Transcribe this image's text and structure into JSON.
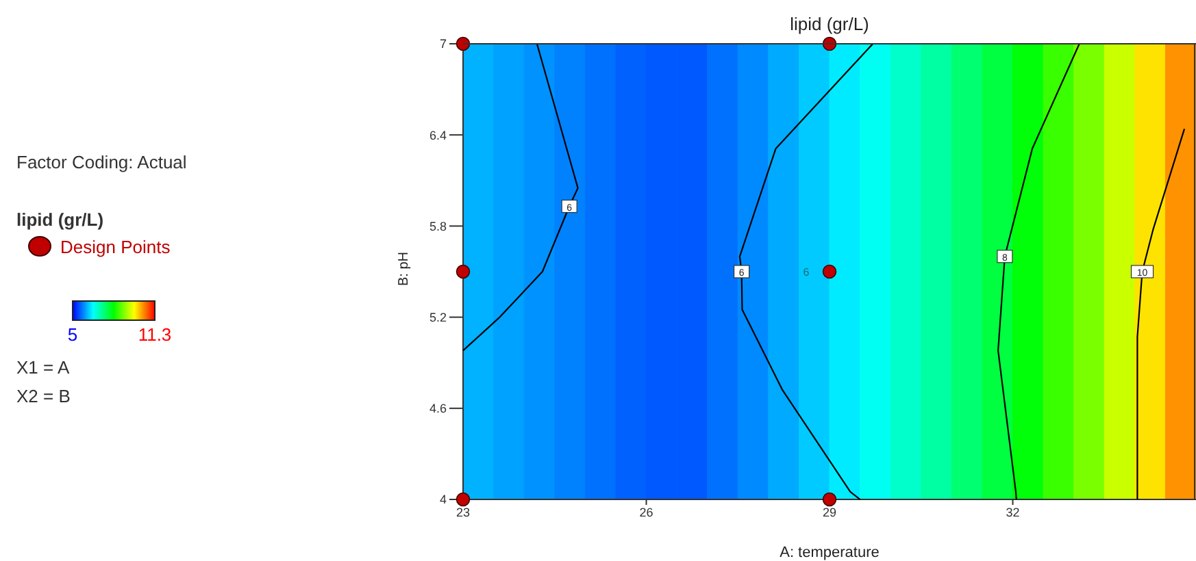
{
  "chart_data": {
    "type": "line",
    "title": "lipid (gr/L)",
    "xlabel": "A: temperature",
    "ylabel": "B: pH",
    "legend_title": "lipid (gr/L)",
    "legend": "left",
    "xlim": [
      23,
      35
    ],
    "xticks": [
      23,
      26,
      29,
      32
    ],
    "ylim": [
      4,
      7
    ],
    "yticks": [
      4,
      4.6,
      5.2,
      5.8,
      6.4,
      7
    ],
    "clim": [
      5,
      11.3
    ],
    "cticks": [
      5,
      11.3
    ],
    "bands": [
      {
        "axis": "x",
        "from": 23,
        "to": 23.5,
        "color": "#00b2ff"
      },
      {
        "axis": "x",
        "from": 23.5,
        "to": 24,
        "color": "#00a2ff"
      },
      {
        "axis": "x",
        "from": 24,
        "to": 24.5,
        "color": "#0092ff"
      },
      {
        "axis": "x",
        "from": 24.5,
        "to": 25,
        "color": "#0082ff"
      },
      {
        "axis": "x",
        "from": 25,
        "to": 25.5,
        "color": "#0071ff"
      },
      {
        "axis": "x",
        "from": 25.5,
        "to": 26,
        "color": "#0061ff"
      },
      {
        "axis": "x",
        "from": 26,
        "to": 26.5,
        "color": "#0059ff"
      },
      {
        "axis": "x",
        "from": 26.5,
        "to": 27,
        "color": "#0059ff"
      },
      {
        "axis": "x",
        "from": 27,
        "to": 27.5,
        "color": "#0071ff"
      },
      {
        "axis": "x",
        "from": 27.5,
        "to": 28,
        "color": "#008aff"
      },
      {
        "axis": "x",
        "from": 28,
        "to": 28.5,
        "color": "#00aaff"
      },
      {
        "axis": "x",
        "from": 28.5,
        "to": 29,
        "color": "#00caff"
      },
      {
        "axis": "x",
        "from": 29,
        "to": 29.5,
        "color": "#00ebff"
      },
      {
        "axis": "x",
        "from": 29.5,
        "to": 30,
        "color": "#00fff3"
      },
      {
        "axis": "x",
        "from": 30,
        "to": 30.5,
        "color": "#00ffca"
      },
      {
        "axis": "x",
        "from": 30.5,
        "to": 31,
        "color": "#00ffa2"
      },
      {
        "axis": "x",
        "from": 31,
        "to": 31.5,
        "color": "#00ff71"
      },
      {
        "axis": "x",
        "from": 31.5,
        "to": 32,
        "color": "#00ff41"
      },
      {
        "axis": "x",
        "from": 32,
        "to": 32.5,
        "color": "#00ff08"
      },
      {
        "axis": "x",
        "from": 32.5,
        "to": 33,
        "color": "#39ff00"
      },
      {
        "axis": "x",
        "from": 33,
        "to": 33.5,
        "color": "#79ff00"
      },
      {
        "axis": "x",
        "from": 33.5,
        "to": 34,
        "color": "#caff00"
      },
      {
        "axis": "x",
        "from": 34,
        "to": 34.5,
        "color": "#ffe300"
      },
      {
        "axis": "x",
        "from": 34.5,
        "to": 35,
        "color": "#ff9200"
      }
    ],
    "series": [
      {
        "type": "line",
        "color": "#000000",
        "x": [
          24.21,
          24.88,
          24.74,
          24.3,
          23.6,
          23
        ],
        "values": [
          7,
          6.05,
          5.93,
          5.5,
          5.2,
          4.98
        ]
      },
      {
        "type": "line",
        "color": "#000000",
        "x": [
          29.71,
          28.12,
          27.53,
          27.56,
          27.57,
          28.23,
          29.34,
          29.5
        ],
        "values": [
          7,
          6.31,
          5.6,
          5.5,
          5.25,
          4.72,
          4.05,
          4
        ]
      },
      {
        "type": "line",
        "color": "#000000",
        "x": [
          33.09,
          32.32,
          31.87,
          31.76,
          32.05,
          32.06
        ],
        "values": [
          7,
          6.31,
          5.6,
          4.98,
          4.05,
          4
        ]
      },
      {
        "type": "line",
        "color": "#000000",
        "x": [
          34.81,
          34.3,
          34.12,
          34.04,
          34.04,
          34.04
        ],
        "values": [
          6.44,
          5.78,
          5.5,
          5.07,
          4.05,
          4
        ]
      },
      {
        "type": "scatter",
        "name": "Design Points",
        "color": "#c00000",
        "marker": "circle",
        "x": [
          23,
          23,
          23,
          29,
          29,
          29
        ],
        "values": [
          4,
          5.5,
          7,
          4,
          5.5,
          7
        ]
      }
    ],
    "annotations": [
      "Factor Coding: Actual",
      "X1 = A",
      "X2 = B",
      {
        "text": "6",
        "x": 24.74,
        "y": 5.93
      },
      {
        "text": "6",
        "x": 27.56,
        "y": 5.5
      },
      {
        "text": "8",
        "x": 31.87,
        "y": 5.6
      },
      {
        "text": "10",
        "x": 34.12,
        "y": 5.5
      },
      {
        "text": "6",
        "x": 29,
        "y": 5.5
      }
    ]
  }
}
